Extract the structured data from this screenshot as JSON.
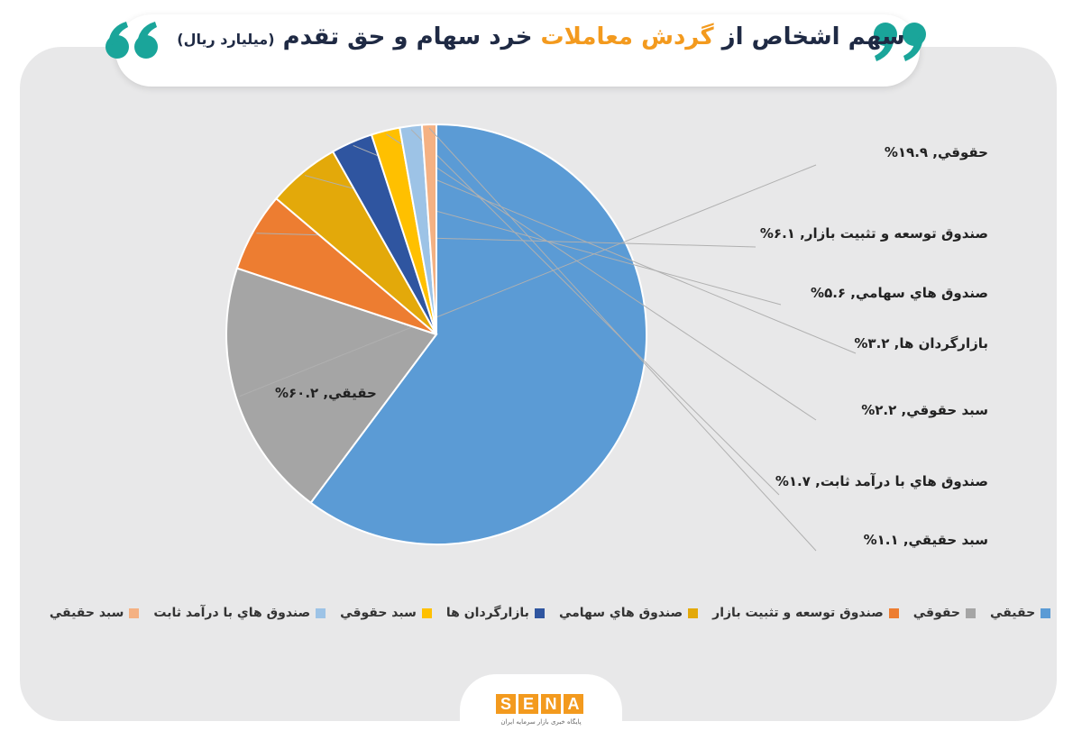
{
  "header": {
    "title_part1": "سهم اشخاص از",
    "title_highlight": "گردش معاملات",
    "title_part2": "خرد سهام و حق تقدم",
    "title_unit": "(میلیارد ریال)"
  },
  "colors": {
    "accent": "#f39a1e",
    "title_text": "#1f2a44",
    "quote_mark": "#1aa59a",
    "panel_bg": "#e8e8e9"
  },
  "chart_data": {
    "type": "pie",
    "title": "سهم اشخاص از گردش معاملات خرد سهام و حق تقدم (میلیارد ریال)",
    "slices": [
      {
        "name": "حقيقي",
        "value": 60.2,
        "label": "حقيقي, ۶۰.۲%",
        "color": "#5b9bd5"
      },
      {
        "name": "حقوقي",
        "value": 19.9,
        "label": "حقوقي, ۱۹.۹%",
        "color": "#a5a5a5"
      },
      {
        "name": "صندوق توسعه و تثبيت بازار",
        "value": 6.1,
        "label": "صندوق توسعه و تثبيت بازار, ۶.۱%",
        "color": "#ed7d31"
      },
      {
        "name": "صندوق هاي سهامي",
        "value": 5.6,
        "label": "صندوق هاي سهامي, ۵.۶%",
        "color": "#e3a90a"
      },
      {
        "name": "بازارگردان ها",
        "value": 3.2,
        "label": "بازارگردان ها, ۳.۲%",
        "color": "#2f55a0"
      },
      {
        "name": "سبد حقوقي",
        "value": 2.2,
        "label": "سبد حقوقي, ۲.۲%",
        "color": "#ffc000"
      },
      {
        "name": "صندوق هاي با درآمد ثابت",
        "value": 1.7,
        "label": "صندوق هاي با درآمد ثابت, ۱.۷%",
        "color": "#9dc3e6"
      },
      {
        "name": "سبد حقيقي",
        "value": 1.1,
        "label": "سبد حقيقي, ۱.۱%",
        "color": "#f4b183"
      }
    ],
    "legend_placement": "bottom"
  },
  "logo": {
    "letters": [
      "S",
      "E",
      "N",
      "A"
    ],
    "tagline": "پایگاه خبری بازار سرمایه ایران"
  }
}
